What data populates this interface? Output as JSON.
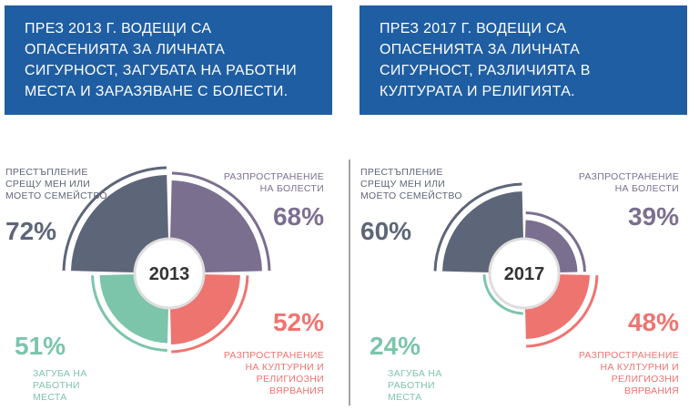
{
  "chart_data": [
    {
      "type": "polar",
      "title": "ПРЕЗ 2013 Г. ВОДЕЩИ СА ОПАСЕНИЯТА ЗА ЛИЧНАТА СИГУРНОСТ, ЗАГУБАТА НА РАБОТНИ МЕСТА И ЗАРАЗЯВАНЕ С БОЛЕСТИ.",
      "center_label": "2013",
      "categories": [
        "ПРЕСТЪПЛЕНИЕ СРЕЩУ МЕН ИЛИ МОЕТО СЕМЕЙСТВО",
        "РАЗПРОСТРАНЕНИЕ НА БОЛЕСТИ",
        "РАЗПРОСТРАНЕНИЕ НА КУЛТУРНИ И РЕЛИГИОЗНИ ВЯРВАНИЯ",
        "ЗАГУБА НА РАБОТНИ МЕСТА"
      ],
      "values": [
        72,
        68,
        52,
        51
      ],
      "value_labels": [
        "72%",
        "68%",
        "52%",
        "51%"
      ],
      "colors": [
        "#5d6678",
        "#7b6f90",
        "#ee7470",
        "#7cc5aa"
      ]
    },
    {
      "type": "polar",
      "title": "ПРЕЗ 2017 Г. ВОДЕЩИ СА ОПАСЕНИЯТА ЗА ЛИЧНАТА СИГУРНОСТ, РАЗЛИЧИЯТА В КУЛТУРАТА И РЕЛИГИЯТА.",
      "center_label": "2017",
      "categories": [
        "ПРЕСТЪПЛЕНИЕ СРЕЩУ МЕН ИЛИ МОЕТО СЕМЕЙСТВО",
        "РАЗПРОСТРАНЕНИЕ НА БОЛЕСТИ",
        "РАЗПРОСТРАНЕНИЕ НА КУЛТУРНИ И РЕЛИГИОЗНИ ВЯРВАНИЯ",
        "ЗАГУБА НА РАБОТНИ МЕСТА"
      ],
      "values": [
        60,
        39,
        48,
        24
      ],
      "value_labels": [
        "60%",
        "39%",
        "48%",
        "24%"
      ],
      "colors": [
        "#5d6678",
        "#7b6f90",
        "#ee7470",
        "#7cc5aa"
      ]
    }
  ]
}
